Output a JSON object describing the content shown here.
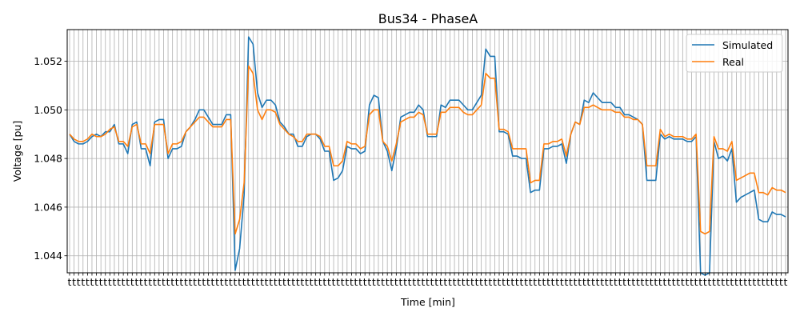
{
  "chart_data": {
    "type": "line",
    "title": "Bus34 - PhaseA",
    "xlabel": "Time [min]",
    "ylabel": "Voltage [pu]",
    "ylim": [
      1.0433,
      1.0533
    ],
    "yticks": [
      1.044,
      1.046,
      1.048,
      1.05,
      1.052
    ],
    "ytick_labels": [
      "1.044",
      "1.046",
      "1.048",
      "1.050",
      "1.052"
    ],
    "x_tick_label_text": "t",
    "grid": true,
    "legend_position": "top-right",
    "series": [
      {
        "name": "Simulated",
        "color": "#1f77b4",
        "values": [
          1.049,
          1.0487,
          1.0486,
          1.0486,
          1.0487,
          1.0489,
          1.049,
          1.0489,
          1.0491,
          1.0491,
          1.0494,
          1.0486,
          1.0486,
          1.0482,
          1.0494,
          1.0495,
          1.0484,
          1.0484,
          1.0477,
          1.0495,
          1.0496,
          1.0496,
          1.048,
          1.0484,
          1.0484,
          1.0485,
          1.0491,
          1.0493,
          1.0496,
          1.05,
          1.05,
          1.0497,
          1.0494,
          1.0494,
          1.0494,
          1.0498,
          1.0498,
          1.0434,
          1.0443,
          1.0465,
          1.053,
          1.0527,
          1.0507,
          1.0501,
          1.0504,
          1.0504,
          1.0502,
          1.0495,
          1.0493,
          1.049,
          1.049,
          1.0485,
          1.0485,
          1.0489,
          1.049,
          1.049,
          1.0488,
          1.0483,
          1.0483,
          1.0471,
          1.0472,
          1.0475,
          1.0485,
          1.0484,
          1.0484,
          1.0482,
          1.0483,
          1.0502,
          1.0506,
          1.0505,
          1.0487,
          1.0483,
          1.0475,
          1.0484,
          1.0497,
          1.0498,
          1.0499,
          1.0499,
          1.0502,
          1.05,
          1.0489,
          1.0489,
          1.0489,
          1.0502,
          1.0501,
          1.0504,
          1.0504,
          1.0504,
          1.0502,
          1.05,
          1.05,
          1.0503,
          1.0506,
          1.0525,
          1.0522,
          1.0522,
          1.0491,
          1.0491,
          1.049,
          1.0481,
          1.0481,
          1.048,
          1.048,
          1.0466,
          1.0467,
          1.0467,
          1.0484,
          1.0484,
          1.0485,
          1.0485,
          1.0486,
          1.0478,
          1.049,
          1.0495,
          1.0494,
          1.0504,
          1.0503,
          1.0507,
          1.0505,
          1.0503,
          1.0503,
          1.0503,
          1.0501,
          1.0501,
          1.0498,
          1.0498,
          1.0497,
          1.0496,
          1.0494,
          1.0471,
          1.0471,
          1.0471,
          1.049,
          1.0488,
          1.0489,
          1.0488,
          1.0488,
          1.0488,
          1.0487,
          1.0487,
          1.0489,
          1.0433,
          1.0432,
          1.0433,
          1.0487,
          1.048,
          1.0481,
          1.0479,
          1.0484,
          1.0462,
          1.0464,
          1.0465,
          1.0466,
          1.0467,
          1.0455,
          1.0454,
          1.0454,
          1.0458,
          1.0457,
          1.0457,
          1.0456
        ]
      },
      {
        "name": "Real",
        "color": "#ff7f0e",
        "values": [
          1.049,
          1.0488,
          1.0487,
          1.0487,
          1.0488,
          1.049,
          1.0489,
          1.0489,
          1.049,
          1.0492,
          1.0493,
          1.0487,
          1.0487,
          1.0485,
          1.0493,
          1.0494,
          1.0486,
          1.0486,
          1.0482,
          1.0494,
          1.0494,
          1.0494,
          1.0482,
          1.0486,
          1.0486,
          1.0487,
          1.0491,
          1.0493,
          1.0495,
          1.0497,
          1.0497,
          1.0495,
          1.0493,
          1.0493,
          1.0493,
          1.0496,
          1.0496,
          1.0449,
          1.0455,
          1.047,
          1.0518,
          1.0515,
          1.05,
          1.0496,
          1.05,
          1.05,
          1.0499,
          1.0494,
          1.0492,
          1.049,
          1.0489,
          1.0487,
          1.0487,
          1.049,
          1.049,
          1.049,
          1.0489,
          1.0485,
          1.0485,
          1.0477,
          1.0477,
          1.0479,
          1.0487,
          1.0486,
          1.0486,
          1.0484,
          1.0485,
          1.0498,
          1.05,
          1.05,
          1.0487,
          1.0485,
          1.0479,
          1.0486,
          1.0495,
          1.0496,
          1.0497,
          1.0497,
          1.0499,
          1.0498,
          1.049,
          1.049,
          1.049,
          1.0499,
          1.0499,
          1.0501,
          1.0501,
          1.0501,
          1.0499,
          1.0498,
          1.0498,
          1.05,
          1.0502,
          1.0515,
          1.0513,
          1.0513,
          1.0492,
          1.0492,
          1.0491,
          1.0484,
          1.0484,
          1.0484,
          1.0484,
          1.047,
          1.0471,
          1.0471,
          1.0486,
          1.0486,
          1.0487,
          1.0487,
          1.0488,
          1.0481,
          1.049,
          1.0495,
          1.0494,
          1.0501,
          1.0501,
          1.0502,
          1.0501,
          1.05,
          1.05,
          1.05,
          1.0499,
          1.0499,
          1.0497,
          1.0497,
          1.0496,
          1.0496,
          1.0494,
          1.0477,
          1.0477,
          1.0477,
          1.0492,
          1.0489,
          1.049,
          1.0489,
          1.0489,
          1.0489,
          1.0488,
          1.0488,
          1.049,
          1.045,
          1.0449,
          1.045,
          1.0489,
          1.0484,
          1.0484,
          1.0483,
          1.0487,
          1.0471,
          1.0472,
          1.0473,
          1.0474,
          1.0474,
          1.0466,
          1.0466,
          1.0465,
          1.0468,
          1.0467,
          1.0467,
          1.0466
        ]
      }
    ]
  }
}
